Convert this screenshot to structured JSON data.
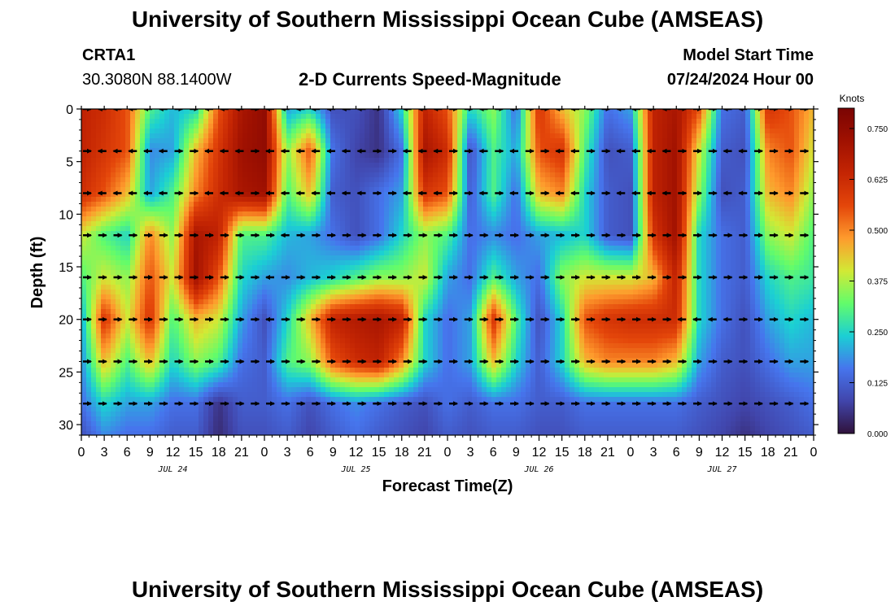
{
  "page": {
    "title": "University of Southern Mississippi Ocean Cube (AMSEAS)",
    "footer_title": "University of Southern Mississippi Ocean Cube (AMSEAS)",
    "station": {
      "name": "CRTA1",
      "coords": "30.3080N  88.1400W"
    },
    "subtitle": "2-D Currents Speed-Magnitude",
    "model": {
      "label": "Model Start Time",
      "value": "07/24/2024 Hour 00"
    }
  },
  "chart_data": {
    "type": "heatmap",
    "title": "2-D Currents Speed-Magnitude",
    "xlabel": "Forecast Time(Z)",
    "ylabel": "Depth (ft)",
    "x_range_hours": [
      0,
      96
    ],
    "y_range_ft": [
      0,
      31
    ],
    "x_tick_labels": [
      "0",
      "3",
      "6",
      "9",
      "12",
      "15",
      "18",
      "21",
      "0",
      "3",
      "6",
      "9",
      "12",
      "15",
      "18",
      "21",
      "0",
      "3",
      "6",
      "9",
      "12",
      "15",
      "18",
      "21",
      "0",
      "3",
      "6",
      "9",
      "12",
      "15",
      "18",
      "21",
      "0"
    ],
    "y_ticks": [
      0,
      5,
      10,
      15,
      20,
      25,
      30
    ],
    "day_labels": [
      {
        "text": "JUL 24",
        "hour": 12
      },
      {
        "text": "JUL 25",
        "hour": 36
      },
      {
        "text": "JUL 26",
        "hour": 60
      },
      {
        "text": "JUL 27",
        "hour": 84
      }
    ],
    "colorbar": {
      "unit": "Knots",
      "min": 0.0,
      "max": 0.8,
      "tick_values": [
        0.0,
        0.125,
        0.25,
        0.375,
        0.5,
        0.625,
        0.75
      ],
      "tick_labels": [
        "0.000",
        "0.125",
        "0.250",
        "0.375",
        "0.500",
        "0.625",
        "0.750"
      ]
    },
    "speed_depths_ft": [
      0,
      4,
      8,
      12,
      16,
      20,
      24,
      28,
      31
    ],
    "speed_hours": [
      0,
      3,
      6,
      9,
      12,
      15,
      18,
      21,
      24,
      27,
      30,
      33,
      36,
      39,
      42,
      45,
      48,
      51,
      54,
      57,
      60,
      63,
      66,
      69,
      72,
      75,
      78,
      81,
      84,
      87,
      90,
      93,
      96
    ],
    "speed_knots": [
      [
        0.65,
        0.62,
        0.55,
        0.3,
        0.22,
        0.25,
        0.55,
        0.7,
        0.75,
        0.2,
        0.25,
        0.1,
        0.1,
        0.05,
        0.25,
        0.65,
        0.55,
        0.25,
        0.35,
        0.15,
        0.6,
        0.45,
        0.35,
        0.15,
        0.2,
        0.65,
        0.7,
        0.55,
        0.15,
        0.12,
        0.6,
        0.55,
        0.45
      ],
      [
        0.65,
        0.6,
        0.55,
        0.18,
        0.2,
        0.45,
        0.6,
        0.72,
        0.75,
        0.35,
        0.55,
        0.15,
        0.08,
        0.05,
        0.15,
        0.7,
        0.62,
        0.1,
        0.3,
        0.2,
        0.55,
        0.6,
        0.3,
        0.1,
        0.12,
        0.65,
        0.72,
        0.4,
        0.12,
        0.1,
        0.5,
        0.55,
        0.4
      ],
      [
        0.62,
        0.55,
        0.45,
        0.2,
        0.3,
        0.5,
        0.62,
        0.7,
        0.72,
        0.3,
        0.45,
        0.12,
        0.1,
        0.15,
        0.2,
        0.6,
        0.55,
        0.12,
        0.3,
        0.15,
        0.45,
        0.5,
        0.25,
        0.12,
        0.1,
        0.65,
        0.72,
        0.35,
        0.1,
        0.12,
        0.45,
        0.5,
        0.35
      ],
      [
        0.4,
        0.3,
        0.25,
        0.5,
        0.35,
        0.7,
        0.65,
        0.3,
        0.3,
        0.22,
        0.2,
        0.15,
        0.1,
        0.15,
        0.25,
        0.35,
        0.3,
        0.15,
        0.18,
        0.15,
        0.2,
        0.22,
        0.25,
        0.12,
        0.1,
        0.6,
        0.72,
        0.25,
        0.15,
        0.12,
        0.35,
        0.4,
        0.3
      ],
      [
        0.3,
        0.4,
        0.35,
        0.55,
        0.4,
        0.72,
        0.55,
        0.25,
        0.2,
        0.18,
        0.22,
        0.25,
        0.3,
        0.35,
        0.35,
        0.4,
        0.2,
        0.15,
        0.3,
        0.2,
        0.15,
        0.35,
        0.4,
        0.4,
        0.4,
        0.45,
        0.65,
        0.25,
        0.15,
        0.12,
        0.25,
        0.3,
        0.28
      ],
      [
        0.2,
        0.6,
        0.4,
        0.6,
        0.3,
        0.45,
        0.4,
        0.2,
        0.1,
        0.25,
        0.45,
        0.65,
        0.68,
        0.7,
        0.65,
        0.25,
        0.15,
        0.2,
        0.6,
        0.3,
        0.1,
        0.25,
        0.55,
        0.6,
        0.62,
        0.62,
        0.62,
        0.25,
        0.15,
        0.1,
        0.2,
        0.25,
        0.22
      ],
      [
        0.18,
        0.45,
        0.3,
        0.45,
        0.25,
        0.35,
        0.3,
        0.15,
        0.12,
        0.3,
        0.35,
        0.55,
        0.62,
        0.65,
        0.5,
        0.25,
        0.15,
        0.2,
        0.45,
        0.25,
        0.12,
        0.25,
        0.45,
        0.5,
        0.5,
        0.5,
        0.45,
        0.2,
        0.12,
        0.1,
        0.15,
        0.2,
        0.2
      ],
      [
        0.15,
        0.25,
        0.2,
        0.2,
        0.15,
        0.15,
        0.05,
        0.12,
        0.12,
        0.15,
        0.1,
        0.15,
        0.18,
        0.15,
        0.12,
        0.1,
        0.15,
        0.12,
        0.15,
        0.15,
        0.12,
        0.12,
        0.15,
        0.15,
        0.15,
        0.15,
        0.15,
        0.12,
        0.1,
        0.08,
        0.1,
        0.12,
        0.15
      ],
      [
        0.1,
        0.18,
        0.15,
        0.15,
        0.12,
        0.12,
        0.04,
        0.1,
        0.1,
        0.12,
        0.08,
        0.12,
        0.15,
        0.12,
        0.1,
        0.08,
        0.12,
        0.1,
        0.12,
        0.12,
        0.1,
        0.1,
        0.12,
        0.12,
        0.12,
        0.12,
        0.12,
        0.1,
        0.08,
        0.05,
        0.08,
        0.1,
        0.12
      ]
    ],
    "vector_depths_ft": [
      0,
      4,
      8,
      12,
      16,
      20,
      24,
      28
    ],
    "vector_hours": [
      0,
      2,
      4,
      6,
      8,
      10,
      12,
      14,
      16,
      18,
      20,
      22,
      24,
      26,
      28,
      30,
      32,
      34,
      36,
      38,
      40,
      42,
      44,
      46,
      48,
      50,
      52,
      54,
      56,
      58,
      60,
      62,
      64,
      66,
      68,
      70,
      72,
      74,
      76,
      78,
      80,
      82,
      84,
      86,
      88,
      90,
      92,
      94
    ],
    "vector_directions": [
      "EWWWWWEEWWWEWWWWWWWEEWWWEEWEWEEWWEEWWWWEEEWWEEEE",
      "EWWWWWEEWWWEWWWWWWWEEWWWEEWEWEEWWEEWWWWEEEWWEEEE",
      "EWWWWWEEWWWEWWWWWWWEEWWWEEWEWEEWWEEWWWWEEEWWEEEE",
      "EEEEEEEEEEEEEWEEEEEEEEEEEEEEEEEEEEEEEEEEEEEEEEEE",
      "EEEEEEEEEEEEWEEEEEEEEEEEEEEEEEEEEEEEEEEEEEEEEEEE",
      "EEEEEEEEEEEEWEEEEEEEEEEEEEEEEEEEEEEEEEEWWWWEEEEE",
      "EEEEEEEEEEEEEEEEEEEEEEEEEEEEEEEEEEEEEEEEEEEEEEEE",
      "EEEEEEEEEEEEEEEEEEEEEEEEEEEEEEEEEEEEEEEEEEEEEEEE"
    ]
  }
}
